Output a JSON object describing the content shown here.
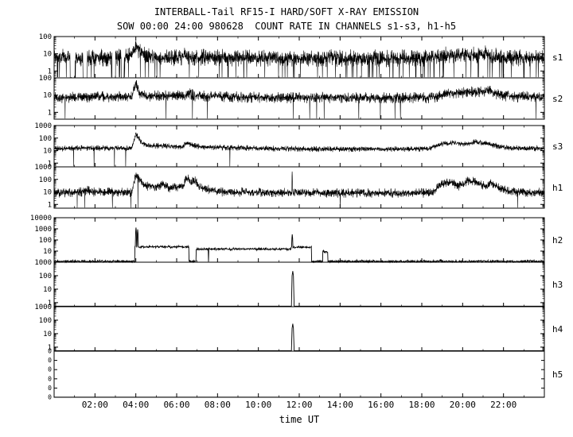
{
  "header": {
    "title": "INTERBALL-Tail RF15-I HARD/SOFT X-RAY EMISSION",
    "subtitle": "SOW 00:00 24:00 980628  COUNT RATE IN CHANNELS s1-s3, h1-h5"
  },
  "axes": {
    "xlabel": "time UT",
    "x_range_hours": [
      0,
      24
    ],
    "x_ticks": [
      "02:00",
      "04:00",
      "06:00",
      "08:00",
      "10:00",
      "12:00",
      "14:00",
      "16:00",
      "18:00",
      "20:00",
      "22:00"
    ]
  },
  "chart_data": {
    "type": "line",
    "title": "INTERBALL-Tail RF15-I HARD/SOFT X-RAY EMISSION",
    "subtitle": "SOW 00:00 24:00 980628  COUNT RATE IN CHANNELS s1-s3, h1-h5",
    "xlabel": "time UT",
    "x_unit": "hours UT",
    "grid": false,
    "legend": "none",
    "panels": [
      {
        "name": "s1",
        "scale": "log",
        "ylim": [
          0.4,
          100
        ],
        "yticks": [
          1,
          10,
          100
        ],
        "noise_dex": 0.22,
        "dropout_rate": 4,
        "anchors": [
          [
            0,
            6
          ],
          [
            3.6,
            6
          ],
          [
            3.85,
            12
          ],
          [
            4.0,
            30
          ],
          [
            4.15,
            14
          ],
          [
            4.5,
            7
          ],
          [
            6,
            6
          ],
          [
            6.5,
            8
          ],
          [
            7,
            6
          ],
          [
            18.0,
            5.5
          ],
          [
            19.0,
            8
          ],
          [
            20.0,
            9
          ],
          [
            20.5,
            8
          ],
          [
            21.0,
            10
          ],
          [
            21.6,
            7
          ],
          [
            22.5,
            6
          ],
          [
            24,
            6
          ]
        ],
        "gaps": [
          [
            0.78,
            1.02
          ],
          [
            1.42,
            1.6
          ],
          [
            2.83,
            3.0
          ],
          [
            3.28,
            3.42
          ]
        ],
        "dropouts": [],
        "spikes": []
      },
      {
        "name": "s2",
        "scale": "log",
        "ylim": [
          0.4,
          100
        ],
        "yticks": [
          1,
          10,
          100
        ],
        "noise_dex": 0.14,
        "dropout_rate": 0.5,
        "anchors": [
          [
            0,
            7
          ],
          [
            1.9,
            8
          ],
          [
            2.1,
            10
          ],
          [
            2.3,
            8
          ],
          [
            3.8,
            8
          ],
          [
            4.0,
            45
          ],
          [
            4.2,
            12
          ],
          [
            4.5,
            9
          ],
          [
            6.4,
            9
          ],
          [
            6.6,
            13
          ],
          [
            6.9,
            9
          ],
          [
            11,
            7
          ],
          [
            18.5,
            7
          ],
          [
            19.3,
            13
          ],
          [
            20.0,
            14
          ],
          [
            20.8,
            16
          ],
          [
            21.3,
            18
          ],
          [
            21.8,
            10
          ],
          [
            22.5,
            8
          ],
          [
            24,
            8
          ]
        ],
        "gaps": [],
        "dropouts": [
          11.7
        ],
        "spikes": []
      },
      {
        "name": "s3",
        "scale": "log",
        "ylim": [
          0.5,
          1000
        ],
        "yticks": [
          1,
          10,
          100,
          1000
        ],
        "noise_dex": 0.1,
        "dropout_rate": 0.1,
        "anchors": [
          [
            0,
            14
          ],
          [
            1.5,
            16
          ],
          [
            3.8,
            15
          ],
          [
            4.0,
            230
          ],
          [
            4.1,
            120
          ],
          [
            4.3,
            40
          ],
          [
            4.6,
            25
          ],
          [
            6.3,
            20
          ],
          [
            6.5,
            45
          ],
          [
            6.8,
            25
          ],
          [
            7.2,
            20
          ],
          [
            11,
            14
          ],
          [
            14,
            13
          ],
          [
            18.3,
            14
          ],
          [
            19.0,
            35
          ],
          [
            19.6,
            40
          ],
          [
            20.2,
            35
          ],
          [
            20.6,
            50
          ],
          [
            21.0,
            40
          ],
          [
            21.6,
            25
          ],
          [
            22.3,
            16
          ],
          [
            24,
            14
          ]
        ],
        "gaps": [],
        "dropouts": [
          0.95,
          1.95,
          2.95
        ],
        "spikes": []
      },
      {
        "name": "h1",
        "scale": "log",
        "ylim": [
          0.5,
          1000
        ],
        "yticks": [
          1,
          10,
          100,
          1000
        ],
        "noise_dex": 0.16,
        "dropout_rate": 0.2,
        "anchors": [
          [
            0,
            8
          ],
          [
            1.4,
            10
          ],
          [
            1.6,
            14
          ],
          [
            1.8,
            10
          ],
          [
            3.8,
            9
          ],
          [
            4.0,
            260
          ],
          [
            4.15,
            120
          ],
          [
            4.4,
            30
          ],
          [
            5.0,
            25
          ],
          [
            5.3,
            40
          ],
          [
            5.6,
            20
          ],
          [
            6.3,
            30
          ],
          [
            6.5,
            130
          ],
          [
            6.7,
            60
          ],
          [
            6.9,
            80
          ],
          [
            7.1,
            25
          ],
          [
            8,
            10
          ],
          [
            11,
            9
          ],
          [
            14,
            8
          ],
          [
            18.5,
            8
          ],
          [
            19.0,
            50
          ],
          [
            19.4,
            60
          ],
          [
            19.8,
            30
          ],
          [
            20.3,
            80
          ],
          [
            20.7,
            60
          ],
          [
            21.1,
            30
          ],
          [
            21.4,
            50
          ],
          [
            21.8,
            20
          ],
          [
            22.3,
            10
          ],
          [
            24,
            9
          ]
        ],
        "gaps": [],
        "dropouts": [
          1.5,
          2.85
        ],
        "spikes": [
          [
            11.65,
            420
          ]
        ]
      },
      {
        "name": "h2",
        "scale": "log",
        "ylim": [
          1,
          10000
        ],
        "yticks": [
          10,
          100,
          1000,
          10000
        ],
        "noise_dex": 0.05,
        "steps": [
          [
            0,
            3.95,
            1.2
          ],
          [
            3.95,
            4.12,
            25
          ],
          [
            4.12,
            6.6,
            24
          ],
          [
            6.6,
            6.95,
            1.2
          ],
          [
            6.95,
            11.6,
            15
          ],
          [
            11.6,
            12.6,
            22
          ],
          [
            12.6,
            13.15,
            1.2
          ],
          [
            13.15,
            13.4,
            9
          ],
          [
            13.4,
            24,
            1.2
          ]
        ],
        "dropouts": [
          7.55
        ],
        "spikes": [
          [
            4.0,
            1300
          ],
          [
            4.08,
            900
          ],
          [
            11.65,
            320
          ]
        ]
      },
      {
        "name": "h3",
        "scale": "log",
        "ylim": [
          0.5,
          1000
        ],
        "yticks": [
          1,
          10,
          100,
          1000
        ],
        "flat": 0.55,
        "noise_dex": 0,
        "dropouts": [],
        "spikes": [
          [
            11.65,
            220
          ]
        ]
      },
      {
        "name": "h4",
        "scale": "log",
        "ylim": [
          0.5,
          1000
        ],
        "yticks": [
          1,
          10,
          100,
          1000
        ],
        "flat": 0.55,
        "noise_dex": 0,
        "dropouts": [],
        "spikes": [
          [
            11.65,
            55
          ]
        ]
      },
      {
        "name": "h5",
        "scale": "linear",
        "ylim": [
          0,
          1
        ],
        "ytick_labels": [
          "0",
          "0",
          "0",
          "0",
          "0",
          "0"
        ],
        "flat": 0.004,
        "noise_dex": 0,
        "dropouts": [],
        "spikes": []
      }
    ]
  }
}
